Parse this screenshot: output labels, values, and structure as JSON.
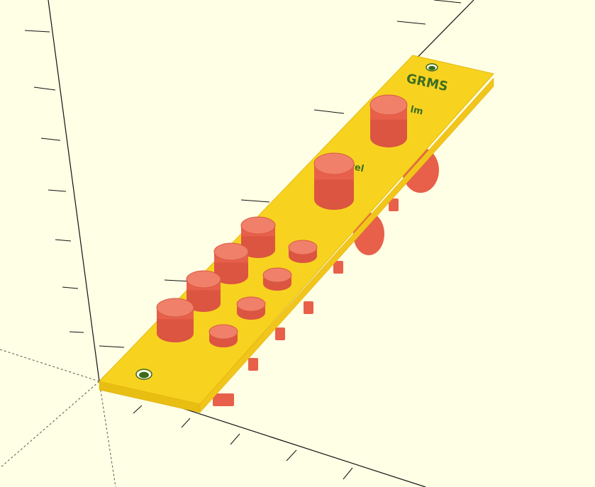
{
  "scene": {
    "background_color": "#ffffe5",
    "panel_color": "#f7d320",
    "panel_edge_color": "#e2b90f",
    "panel_side_color": "#f2c51a",
    "cylinder_top_color": "#f0806a",
    "cylinder_body_color": "#e8604a",
    "cylinder_dark_color": "#cf4c3a",
    "axis_color": "#111111",
    "hole_color": "#3a6a20"
  },
  "panel_text": {
    "title": "GRMS",
    "upper_knob_label": "lm",
    "lower_knob_label": "level"
  },
  "icons": {
    "mount_hole": "circle-icon",
    "knob": "cylinder-icon"
  }
}
